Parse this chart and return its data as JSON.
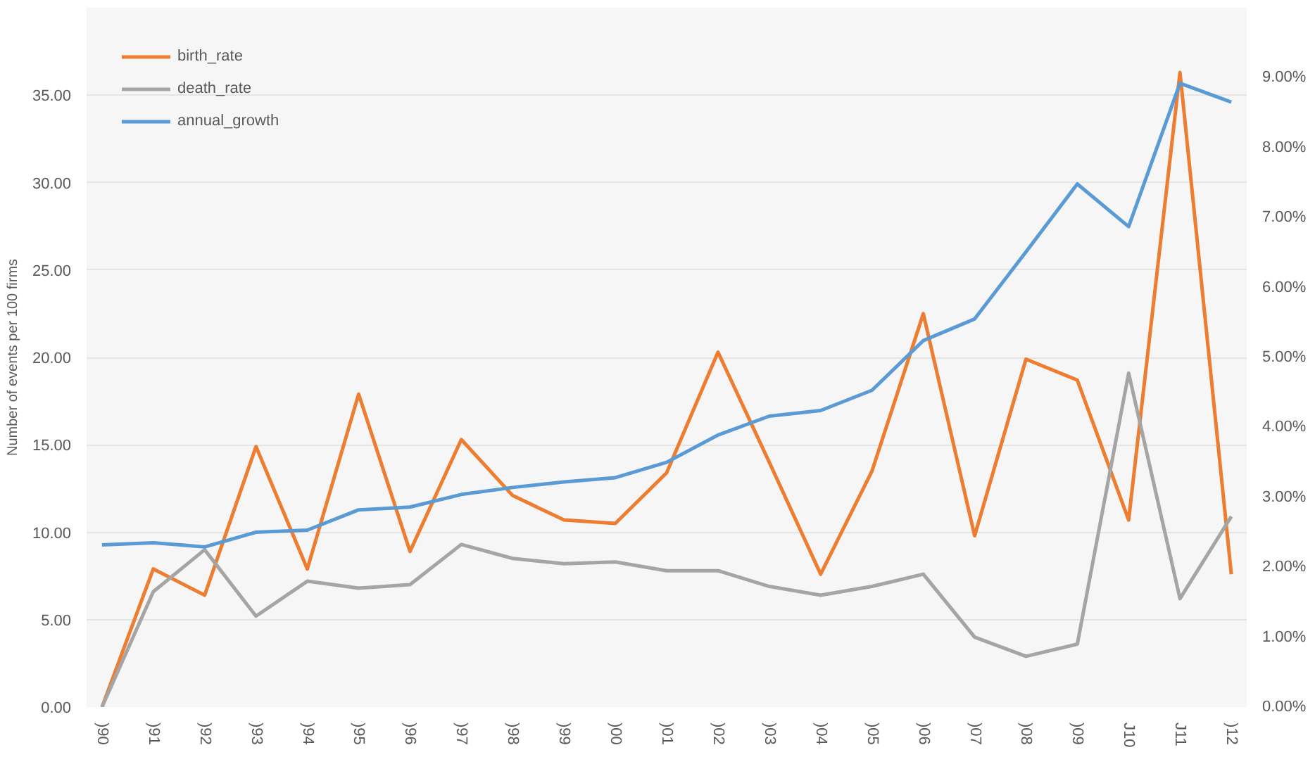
{
  "chart_data": {
    "type": "line",
    "categories": [
      ")90",
      ")91",
      ")92",
      ")93",
      ")94",
      ")95",
      ")96",
      ")97",
      ")98",
      ")99",
      ")00",
      ")01",
      ")02",
      ")03",
      ")04",
      ")05",
      ")06",
      ")07",
      ")08",
      ")09",
      "J10",
      "J11",
      ")12"
    ],
    "ylabel": "Number of events per 100 firms",
    "ylim": [
      0,
      40
    ],
    "yticks": [
      {
        "value": 0,
        "label": "0.00"
      },
      {
        "value": 5,
        "label": "5.00"
      },
      {
        "value": 10,
        "label": "10.00"
      },
      {
        "value": 15,
        "label": "15.00"
      },
      {
        "value": 20,
        "label": "20.00"
      },
      {
        "value": 25,
        "label": "25.00"
      },
      {
        "value": 30,
        "label": "30.00"
      },
      {
        "value": 35,
        "label": "35.00"
      },
      {
        "value": 40,
        "label": null
      }
    ],
    "y2lim": [
      0,
      10
    ],
    "y2ticks": [
      {
        "value": 0,
        "label": "0.00%"
      },
      {
        "value": 1,
        "label": "1.00%"
      },
      {
        "value": 2,
        "label": "2.00%"
      },
      {
        "value": 3,
        "label": "3.00%"
      },
      {
        "value": 4,
        "label": "4.00%"
      },
      {
        "value": 5,
        "label": "5.00%"
      },
      {
        "value": 6,
        "label": "6.00%"
      },
      {
        "value": 7,
        "label": "7.00%"
      },
      {
        "value": 8,
        "label": "8.00%"
      },
      {
        "value": 9,
        "label": "9.00%"
      },
      {
        "value": 10,
        "label": null
      }
    ],
    "series": [
      {
        "name": "birth_rate",
        "color": "#ed7d31",
        "values": [
          0,
          7.9,
          6.4,
          14.9,
          7.9,
          17.9,
          8.9,
          15.3,
          12.1,
          10.7,
          10.5,
          13.4,
          20.3,
          14.0,
          7.6,
          13.5,
          22.5,
          9.8,
          19.9,
          18.7,
          10.7,
          36.3,
          7.6
        ]
      },
      {
        "name": "death_rate",
        "color": "#a5a5a5",
        "values": [
          0,
          6.6,
          9.0,
          5.2,
          7.2,
          6.8,
          7.0,
          9.3,
          8.5,
          8.2,
          8.3,
          7.8,
          7.8,
          6.9,
          6.4,
          6.9,
          7.6,
          4.0,
          2.9,
          3.6,
          19.1,
          6.2,
          10.9
        ]
      },
      {
        "name": "annual_growth",
        "color": "#5b9bd5",
        "axis": "y2",
        "values": [
          2.32,
          2.35,
          2.29,
          2.5,
          2.53,
          2.82,
          2.86,
          3.04,
          3.14,
          3.22,
          3.28,
          3.5,
          3.89,
          4.16,
          4.24,
          4.53,
          5.24,
          5.55,
          6.51,
          7.48,
          6.87,
          8.92,
          8.65
        ]
      }
    ],
    "grid": "y",
    "legend": "top left"
  }
}
